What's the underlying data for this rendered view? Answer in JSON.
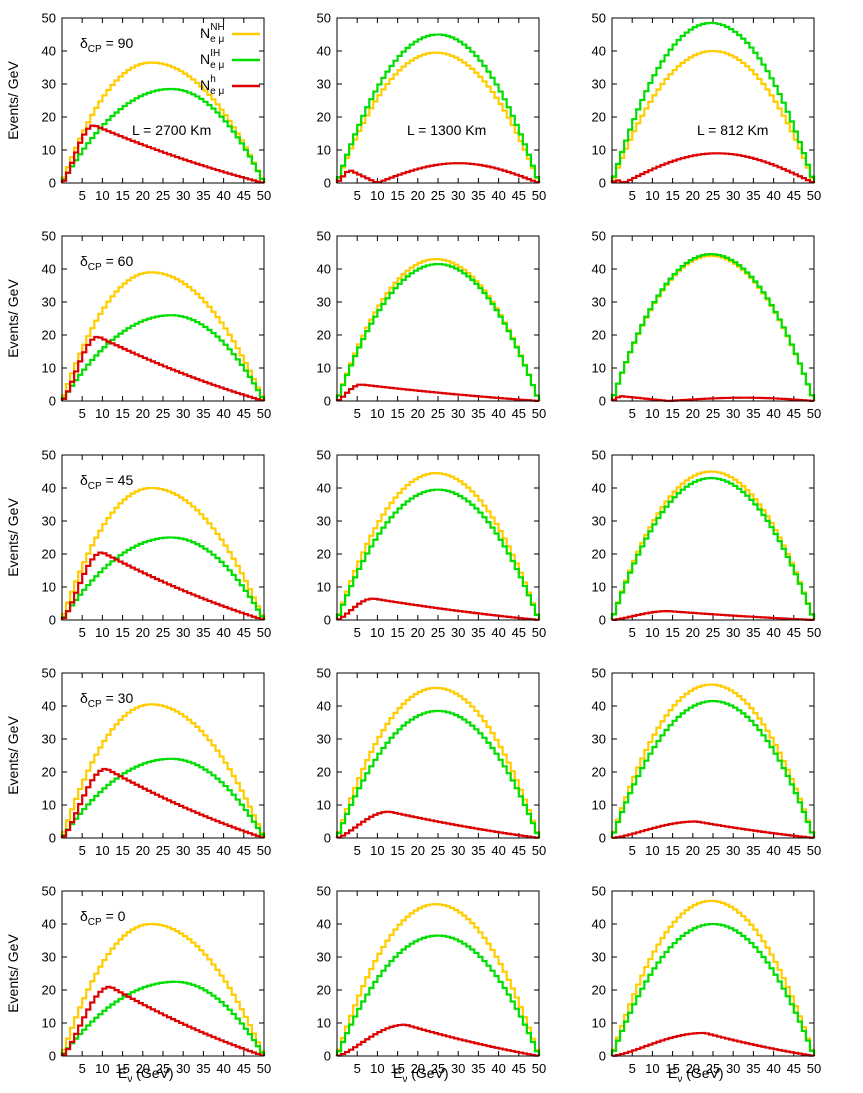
{
  "figure": {
    "ylabel": "Events/ GeV",
    "xlabel": "E",
    "xlabel_sub": "ν",
    "xlabel_unit": " (GeV)",
    "legend": [
      {
        "base": "N",
        "sub": "e μ",
        "sup": "NH",
        "color": "#ffcc00"
      },
      {
        "base": "N",
        "sub": "e μ",
        "sup": "IH",
        "color": "#00dd00"
      },
      {
        "base": "N",
        "sub": "e μ",
        "sup": "h",
        "color": "#dd0000"
      }
    ],
    "baselines": [
      "L = 2700 Km",
      "L = 1300 Km",
      "L = 812 Km"
    ],
    "delta_label": "δ",
    "delta_sub": "CP",
    "delta_values": [
      "90",
      "60",
      "45",
      "30",
      "0"
    ]
  },
  "chart_data": {
    "type": "line",
    "style": "step histogram, 1 GeV bins, 5 rows (δCP) × 3 columns (baseline)",
    "xlim": [
      0,
      50
    ],
    "ylim": [
      0,
      50
    ],
    "xticks": [
      5,
      10,
      15,
      20,
      25,
      30,
      35,
      40,
      45,
      50
    ],
    "yticks": [
      0,
      10,
      20,
      30,
      40,
      50
    ],
    "colors": {
      "NH": "#ffcc00",
      "IH": "#00dd00",
      "h": "#dd0000"
    },
    "panels": [
      [
        {
          "NH": {
            "shape": "parabola",
            "peak": 36.5,
            "peak_x": 22
          },
          "IH": {
            "shape": "parabola",
            "peak": 28.5,
            "peak_x": 27
          },
          "h": {
            "shape": "rise_fall",
            "peak": 17.5,
            "peak_x": 8
          }
        },
        {
          "NH": {
            "shape": "parabola",
            "peak": 39.5,
            "peak_x": 24.5
          },
          "IH": {
            "shape": "parabola",
            "peak": 45,
            "peak_x": 25
          },
          "h": {
            "shape": "oscillating",
            "first_peak": 4,
            "first_peak_x": 3,
            "zero_x": 10,
            "peak": 6,
            "peak_x": 30
          }
        },
        {
          "NH": {
            "shape": "parabola",
            "peak": 40,
            "peak_x": 25
          },
          "IH": {
            "shape": "parabola",
            "peak": 48.5,
            "peak_x": 24.5
          },
          "h": {
            "shape": "oscillating",
            "first_peak": 1,
            "first_peak_x": 1,
            "zero_x": 3,
            "peak": 9,
            "peak_x": 26
          }
        }
      ],
      [
        {
          "NH": {
            "shape": "parabola",
            "peak": 39,
            "peak_x": 22
          },
          "IH": {
            "shape": "parabola",
            "peak": 26,
            "peak_x": 27
          },
          "h": {
            "shape": "rise_fall",
            "peak": 19.5,
            "peak_x": 9
          }
        },
        {
          "NH": {
            "shape": "parabola",
            "peak": 43,
            "peak_x": 24.5
          },
          "IH": {
            "shape": "parabola",
            "peak": 41.5,
            "peak_x": 25
          },
          "h": {
            "shape": "rise_fall",
            "peak": 5,
            "peak_x": 6
          }
        },
        {
          "NH": {
            "shape": "parabola",
            "peak": 44,
            "peak_x": 24.5
          },
          "IH": {
            "shape": "parabola",
            "peak": 44.5,
            "peak_x": 24.5
          },
          "h": {
            "shape": "oscillating",
            "first_peak": 1.5,
            "first_peak_x": 2,
            "zero_x": 14,
            "peak": 1,
            "peak_x": 33
          }
        }
      ],
      [
        {
          "NH": {
            "shape": "parabola",
            "peak": 40,
            "peak_x": 22
          },
          "IH": {
            "shape": "parabola",
            "peak": 25,
            "peak_x": 27
          },
          "h": {
            "shape": "rise_fall",
            "peak": 20.5,
            "peak_x": 10
          }
        },
        {
          "NH": {
            "shape": "parabola",
            "peak": 44.5,
            "peak_x": 24.5
          },
          "IH": {
            "shape": "parabola",
            "peak": 39.5,
            "peak_x": 25
          },
          "h": {
            "shape": "rise_fall",
            "peak": 6.5,
            "peak_x": 9
          }
        },
        {
          "NH": {
            "shape": "parabola",
            "peak": 45,
            "peak_x": 24.5
          },
          "IH": {
            "shape": "parabola",
            "peak": 43,
            "peak_x": 24.5
          },
          "h": {
            "shape": "rise_fall",
            "peak": 2.7,
            "peak_x": 14
          }
        }
      ],
      [
        {
          "NH": {
            "shape": "parabola",
            "peak": 40.5,
            "peak_x": 22
          },
          "IH": {
            "shape": "parabola",
            "peak": 24,
            "peak_x": 27
          },
          "h": {
            "shape": "rise_fall",
            "peak": 21,
            "peak_x": 11
          }
        },
        {
          "NH": {
            "shape": "parabola",
            "peak": 45.5,
            "peak_x": 24.5
          },
          "IH": {
            "shape": "parabola",
            "peak": 38.5,
            "peak_x": 25
          },
          "h": {
            "shape": "rise_fall",
            "peak": 8,
            "peak_x": 13
          }
        },
        {
          "NH": {
            "shape": "parabola",
            "peak": 46.5,
            "peak_x": 24.5
          },
          "IH": {
            "shape": "parabola",
            "peak": 41.5,
            "peak_x": 25
          },
          "h": {
            "shape": "rise_fall",
            "peak": 5,
            "peak_x": 21
          }
        }
      ],
      [
        {
          "NH": {
            "shape": "parabola",
            "peak": 40,
            "peak_x": 22
          },
          "IH": {
            "shape": "parabola",
            "peak": 22.5,
            "peak_x": 28
          },
          "h": {
            "shape": "rise_fall",
            "peak": 21,
            "peak_x": 12
          }
        },
        {
          "NH": {
            "shape": "parabola",
            "peak": 46,
            "peak_x": 24.5
          },
          "IH": {
            "shape": "parabola",
            "peak": 36.5,
            "peak_x": 25
          },
          "h": {
            "shape": "rise_fall",
            "peak": 9.5,
            "peak_x": 17
          }
        },
        {
          "NH": {
            "shape": "parabola",
            "peak": 47,
            "peak_x": 24.5
          },
          "IH": {
            "shape": "parabola",
            "peak": 40,
            "peak_x": 25
          },
          "h": {
            "shape": "rise_fall",
            "peak": 7,
            "peak_x": 23
          }
        }
      ]
    ]
  }
}
